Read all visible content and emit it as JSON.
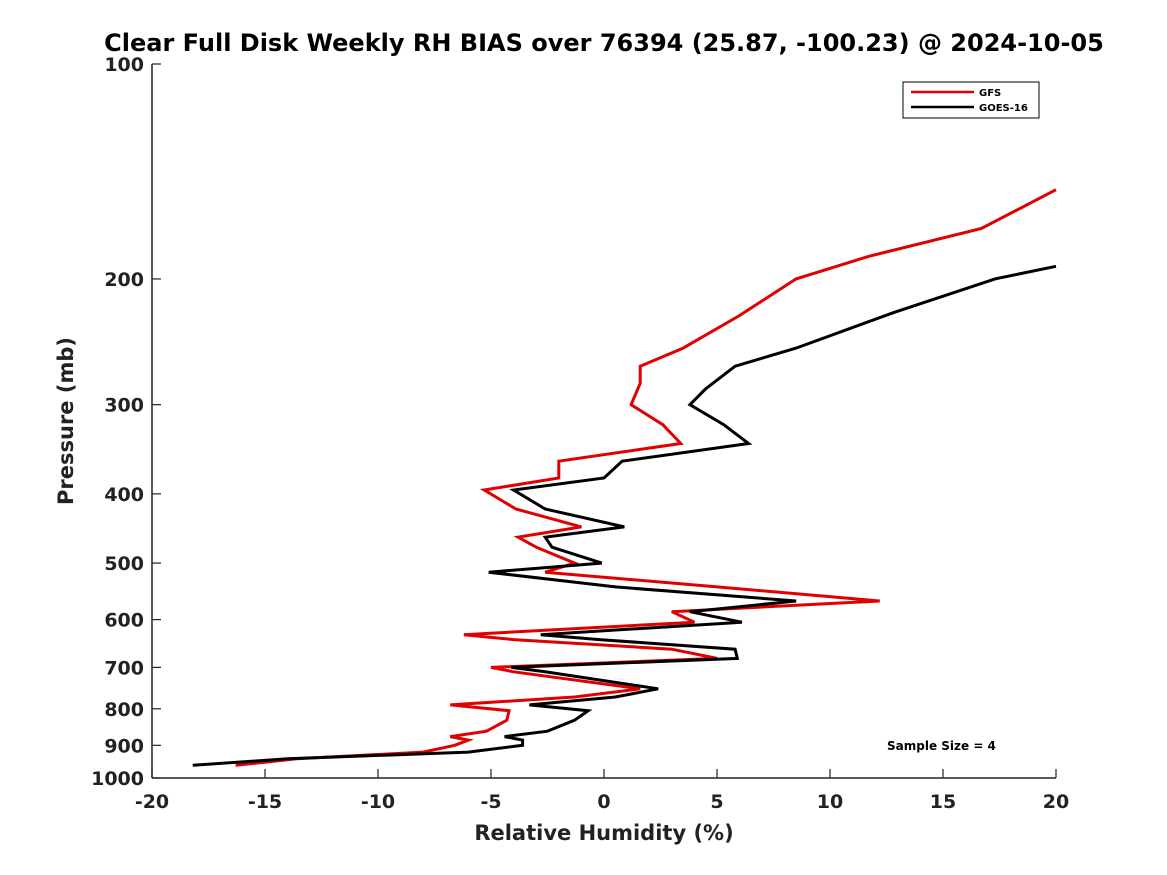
{
  "chart_data": {
    "type": "line",
    "title": "Clear Full Disk Weekly RH BIAS over 76394 (25.87, -100.23) @ 2024-10-05",
    "xlabel": "Relative Humidity (%)",
    "ylabel": "Pressure (mb)",
    "xlim": [
      -20,
      20
    ],
    "ylim": [
      100,
      1000
    ],
    "y_scale": "log",
    "y_reversed": true,
    "x_ticks": [
      "-20",
      "-15",
      "-10",
      "-5",
      "0",
      "5",
      "10",
      "15",
      "20"
    ],
    "y_ticks": [
      "100",
      "200",
      "300",
      "400",
      "500",
      "600",
      "700",
      "800",
      "900",
      "1000"
    ],
    "grid": false,
    "legend_position": "top-right",
    "annotation": "Sample Size = 4",
    "series": [
      {
        "name": "GFS",
        "color": "#e00000",
        "points": [
          [
            20.0,
            150
          ],
          [
            16.7,
            170
          ],
          [
            11.7,
            186
          ],
          [
            8.5,
            200
          ],
          [
            6.0,
            225
          ],
          [
            3.5,
            250
          ],
          [
            1.6,
            265
          ],
          [
            1.6,
            280
          ],
          [
            1.2,
            300
          ],
          [
            2.6,
            320
          ],
          [
            3.4,
            340
          ],
          [
            -2.0,
            360
          ],
          [
            -2.0,
            380
          ],
          [
            -5.3,
            395
          ],
          [
            -3.9,
            420
          ],
          [
            -1.0,
            445
          ],
          [
            -3.8,
            460
          ],
          [
            -3.0,
            475
          ],
          [
            -1.3,
            500
          ],
          [
            -2.6,
            515
          ],
          [
            5.0,
            540
          ],
          [
            12.2,
            565
          ],
          [
            3.0,
            585
          ],
          [
            4.0,
            605
          ],
          [
            -6.2,
            630
          ],
          [
            -4.0,
            640
          ],
          [
            3.0,
            660
          ],
          [
            5.0,
            680
          ],
          [
            -5.0,
            700
          ],
          [
            -4.0,
            710
          ],
          [
            1.6,
            750
          ],
          [
            -1.3,
            770
          ],
          [
            -6.8,
            790
          ],
          [
            -4.2,
            805
          ],
          [
            -4.3,
            830
          ],
          [
            -5.2,
            860
          ],
          [
            -6.8,
            875
          ],
          [
            -6.0,
            885
          ],
          [
            -6.6,
            900
          ],
          [
            -8.0,
            920
          ],
          [
            -13.6,
            940
          ],
          [
            -16.3,
            960
          ]
        ]
      },
      {
        "name": "GOES-16",
        "color": "#000000",
        "points": [
          [
            20.0,
            192
          ],
          [
            17.3,
            200
          ],
          [
            12.8,
            223
          ],
          [
            8.5,
            250
          ],
          [
            5.8,
            265
          ],
          [
            4.5,
            285
          ],
          [
            3.8,
            300
          ],
          [
            5.3,
            320
          ],
          [
            6.4,
            340
          ],
          [
            0.8,
            360
          ],
          [
            0.0,
            380
          ],
          [
            -4.0,
            395
          ],
          [
            -2.6,
            420
          ],
          [
            0.9,
            445
          ],
          [
            -2.6,
            460
          ],
          [
            -2.3,
            475
          ],
          [
            -0.1,
            500
          ],
          [
            -5.1,
            515
          ],
          [
            0.5,
            540
          ],
          [
            8.5,
            565
          ],
          [
            3.8,
            585
          ],
          [
            6.1,
            605
          ],
          [
            -2.8,
            630
          ],
          [
            -0.2,
            640
          ],
          [
            5.8,
            660
          ],
          [
            5.9,
            680
          ],
          [
            -4.1,
            700
          ],
          [
            -2.6,
            710
          ],
          [
            2.4,
            750
          ],
          [
            0.5,
            770
          ],
          [
            -3.3,
            790
          ],
          [
            -0.7,
            805
          ],
          [
            -1.3,
            830
          ],
          [
            -2.5,
            860
          ],
          [
            -4.4,
            875
          ],
          [
            -3.6,
            885
          ],
          [
            -3.6,
            900
          ],
          [
            -6.0,
            920
          ],
          [
            -14.0,
            940
          ],
          [
            -18.2,
            960
          ]
        ]
      }
    ]
  }
}
